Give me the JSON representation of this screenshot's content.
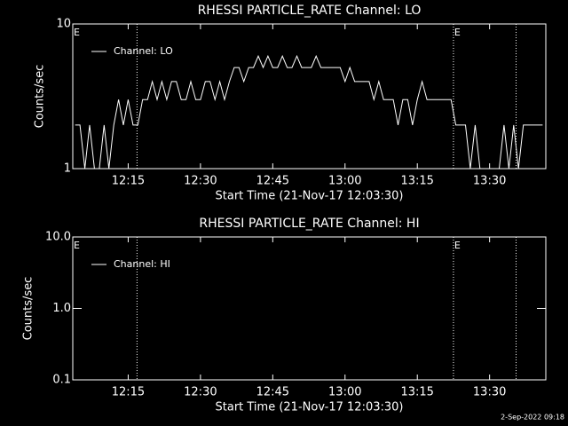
{
  "chart_data": [
    {
      "type": "line",
      "title": "RHESSI PARTICLE_RATE Channel: LO",
      "xlabel": "Start Time (21-Nov-17 12:03:30)",
      "ylabel": "Counts/sec",
      "log_y": true,
      "xlim": [
        "12:03:30",
        "13:41:40"
      ],
      "ylim": [
        1,
        10
      ],
      "yticks": [
        1,
        10
      ],
      "xticks": [
        "12:15",
        "12:30",
        "12:45",
        "13:00",
        "13:15",
        "13:30"
      ],
      "vlines": [
        "12:16:50",
        "13:22:30",
        "13:35:30"
      ],
      "markers": [
        {
          "x": "12:03:30",
          "label": "E"
        },
        {
          "x": "13:22:30",
          "label": "E"
        }
      ],
      "legend": "upper left",
      "x": [
        "12:04",
        "12:05",
        "12:06",
        "12:07",
        "12:08",
        "12:09",
        "12:10",
        "12:11",
        "12:12",
        "12:13",
        "12:14",
        "12:15",
        "12:16",
        "12:17",
        "12:18",
        "12:19",
        "12:20",
        "12:21",
        "12:22",
        "12:23",
        "12:24",
        "12:25",
        "12:26",
        "12:27",
        "12:28",
        "12:29",
        "12:30",
        "12:31",
        "12:32",
        "12:33",
        "12:34",
        "12:35",
        "12:36",
        "12:37",
        "12:38",
        "12:39",
        "12:40",
        "12:41",
        "12:42",
        "12:43",
        "12:44",
        "12:45",
        "12:46",
        "12:47",
        "12:48",
        "12:49",
        "12:50",
        "12:51",
        "12:52",
        "12:53",
        "12:54",
        "12:55",
        "12:56",
        "12:57",
        "12:58",
        "12:59",
        "13:00",
        "13:01",
        "13:02",
        "13:03",
        "13:04",
        "13:05",
        "13:06",
        "13:07",
        "13:08",
        "13:09",
        "13:10",
        "13:11",
        "13:12",
        "13:13",
        "13:14",
        "13:15",
        "13:16",
        "13:17",
        "13:18",
        "13:19",
        "13:20",
        "13:21",
        "13:22",
        "13:23",
        "13:24",
        "13:25",
        "13:26",
        "13:27",
        "13:28",
        "13:29",
        "13:30",
        "13:31",
        "13:32",
        "13:33",
        "13:34",
        "13:35",
        "13:36",
        "13:37",
        "13:38",
        "13:39",
        "13:40",
        "13:41"
      ],
      "series": [
        {
          "name": "Channel: LO",
          "color": "#ffffff",
          "values": [
            2,
            2,
            1,
            2,
            1,
            1,
            2,
            1,
            2,
            3,
            2,
            3,
            2,
            2,
            3,
            3,
            4,
            3,
            4,
            3,
            4,
            4,
            3,
            3,
            4,
            3,
            3,
            4,
            4,
            3,
            4,
            3,
            4,
            5,
            5,
            4,
            5,
            5,
            6,
            5,
            6,
            5,
            5,
            6,
            5,
            5,
            6,
            5,
            5,
            5,
            6,
            5,
            5,
            5,
            5,
            5,
            4,
            5,
            4,
            4,
            4,
            4,
            3,
            4,
            3,
            3,
            3,
            2,
            3,
            3,
            2,
            3,
            4,
            3,
            3,
            3,
            3,
            3,
            3,
            2,
            2,
            2,
            1,
            2,
            1,
            1,
            1,
            1,
            1,
            2,
            1,
            2,
            1,
            2,
            2,
            2,
            2,
            2
          ]
        }
      ]
    },
    {
      "type": "line",
      "title": "RHESSI PARTICLE_RATE Channel: HI",
      "xlabel": "Start Time (21-Nov-17 12:03:30)",
      "ylabel": "Counts/sec",
      "log_y": true,
      "xlim": [
        "12:03:30",
        "13:41:40"
      ],
      "ylim": [
        0.1,
        10
      ],
      "yticks": [
        0.1,
        {
          "value": 1,
          "label": "1.0"
        },
        {
          "value": 10,
          "label": "10.0"
        }
      ],
      "xticks": [
        "12:15",
        "12:30",
        "12:45",
        "13:00",
        "13:15",
        "13:30"
      ],
      "vlines": [
        "12:16:50",
        "13:22:30",
        "13:35:30"
      ],
      "markers": [
        {
          "x": "12:03:30",
          "label": "E"
        },
        {
          "x": "13:22:30",
          "label": "E"
        }
      ],
      "legend": "upper left",
      "x": [
        "12:03:30",
        "13:41:40"
      ],
      "series": [
        {
          "name": "Channel: HI",
          "color": "#ffffff",
          "values": [
            null,
            null
          ]
        }
      ]
    }
  ],
  "footer": "2-Sep-2022 09:18"
}
